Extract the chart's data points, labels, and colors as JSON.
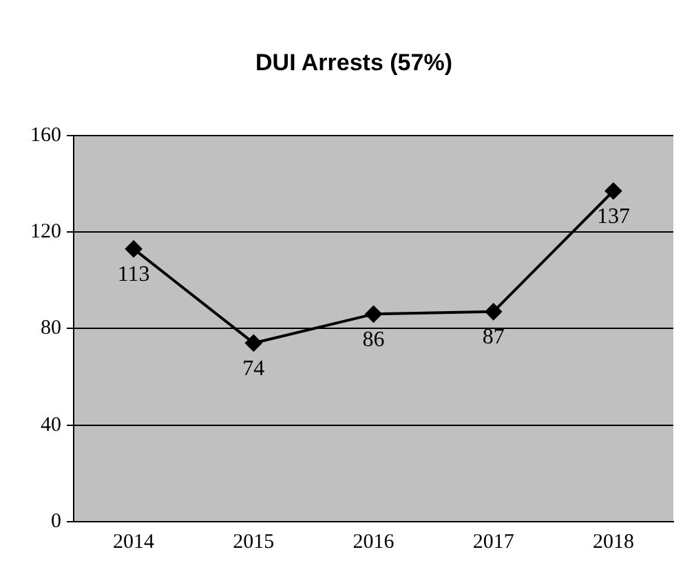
{
  "chart_data": {
    "type": "line",
    "title": "DUI Arrests (57%)",
    "categories": [
      "2014",
      "2015",
      "2016",
      "2017",
      "2018"
    ],
    "values": [
      113,
      74,
      86,
      87,
      137
    ],
    "color": "#000000",
    "ylim": [
      0,
      160
    ],
    "yticks": [
      0,
      40,
      80,
      120,
      160
    ],
    "grid": "y",
    "marker": "diamond",
    "line_style": "solid",
    "data_labels": true,
    "legend": false
  }
}
